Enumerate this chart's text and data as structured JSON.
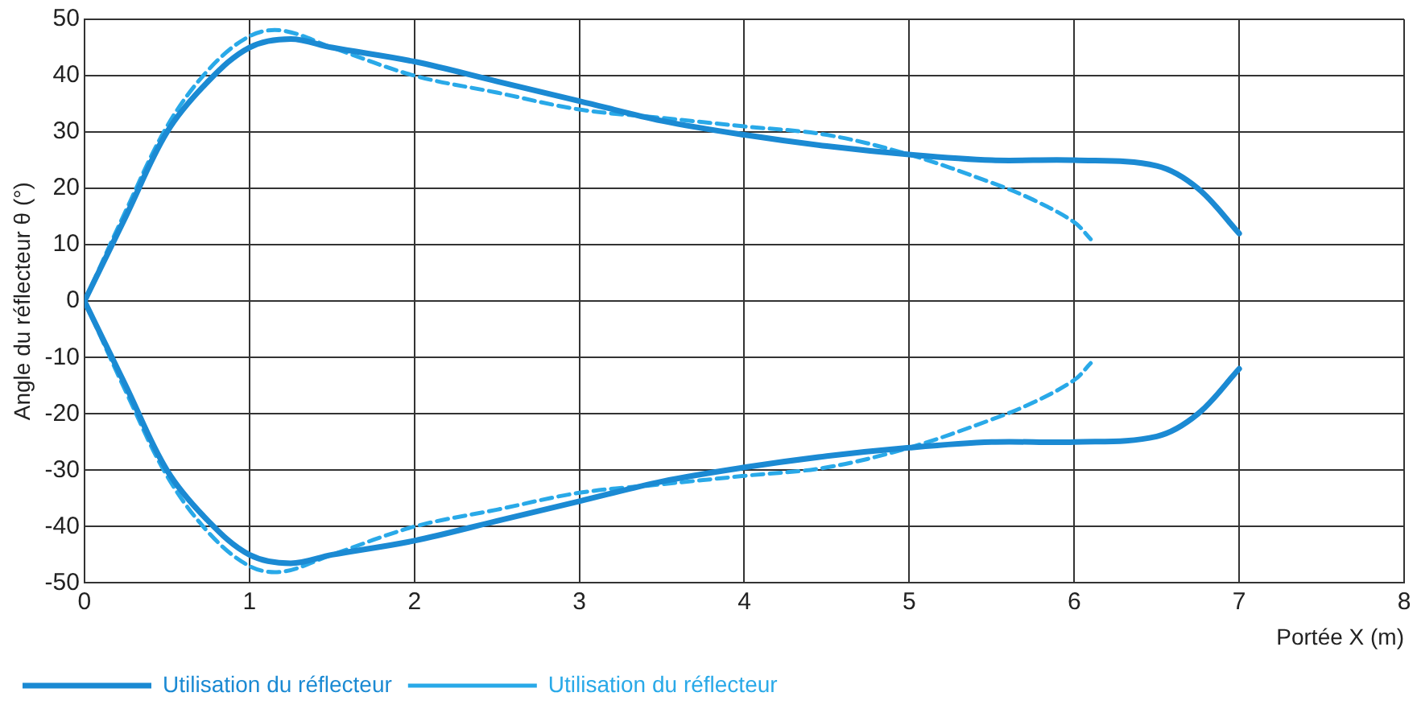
{
  "chart_data": {
    "type": "line",
    "xlabel": "Portée X (m)",
    "ylabel": "Angle du réflecteur θ (°)",
    "xlim": [
      0,
      8
    ],
    "ylim": [
      -50,
      50
    ],
    "xticks": [
      0,
      1,
      2,
      3,
      4,
      5,
      6,
      7,
      8
    ],
    "yticks": [
      -50,
      -40,
      -30,
      -20,
      -10,
      0,
      10,
      20,
      30,
      40,
      50
    ],
    "grid": true,
    "legend": "bottom left",
    "marker": "none",
    "series": [
      {
        "name": "Utilisation du réflecteur",
        "color": "#1b8ad3",
        "line_style": "solid",
        "x": [
          0,
          0.25,
          0.5,
          0.75,
          1,
          1.25,
          1.5,
          2,
          2.5,
          3,
          3.5,
          4,
          4.5,
          5,
          5.5,
          6,
          6.5,
          6.75,
          7
        ],
        "values": [
          0,
          15,
          30,
          39,
          45,
          46.5,
          45,
          42.5,
          39,
          35.5,
          32,
          29.5,
          27.5,
          26,
          25,
          25,
          24,
          20,
          12
        ]
      },
      {
        "color": "#1b8ad3",
        "line_style": "solid",
        "x": [
          0,
          0.25,
          0.5,
          0.75,
          1,
          1.25,
          1.5,
          2,
          2.5,
          3,
          3.5,
          4,
          4.5,
          5,
          5.5,
          6,
          6.5,
          6.75,
          7
        ],
        "values": [
          0,
          -15,
          -30,
          -39,
          -45,
          -46.5,
          -45,
          -42.5,
          -39,
          -35.5,
          -32,
          -29.5,
          -27.5,
          -26,
          -25,
          -25,
          -24,
          -20,
          -12
        ]
      },
      {
        "name": "Utilisation du réflecteur",
        "color": "#29a9e8",
        "line_style": "dashed",
        "x": [
          0,
          0.25,
          0.5,
          0.75,
          1,
          1.2,
          1.5,
          2,
          2.5,
          3,
          3.5,
          4,
          4.5,
          5,
          5.5,
          5.75,
          6,
          6.1
        ],
        "values": [
          0,
          16,
          31,
          41,
          47,
          48,
          45,
          40,
          37,
          34,
          32.5,
          31,
          29.5,
          26,
          21,
          18,
          14,
          11
        ]
      },
      {
        "color": "#29a9e8",
        "line_style": "dashed",
        "x": [
          0,
          0.25,
          0.5,
          0.75,
          1,
          1.2,
          1.5,
          2,
          2.5,
          3,
          3.5,
          4,
          4.5,
          5,
          5.5,
          5.75,
          6,
          6.1
        ],
        "values": [
          0,
          -16,
          -31,
          -41,
          -47,
          -48,
          -45,
          -40,
          -37,
          -34,
          -32.5,
          -31,
          -29.5,
          -26,
          -21,
          -18,
          -14,
          -11
        ]
      }
    ]
  }
}
